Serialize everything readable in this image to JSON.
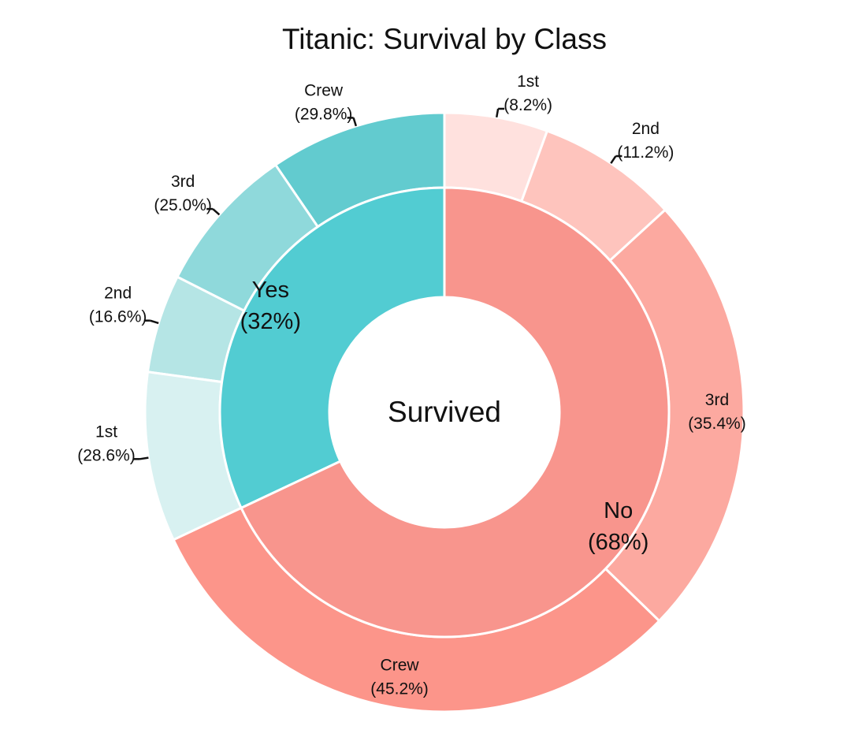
{
  "chart_data": {
    "type": "pie",
    "subtype": "nested-donut",
    "title": "Titanic: Survival by Class",
    "center_label": "Survived",
    "inner": [
      {
        "name": "Yes",
        "pct_label": "(32%)",
        "value": 32,
        "color": "#52CCD2"
      },
      {
        "name": "No",
        "pct_label": "(68%)",
        "value": 68,
        "color": "#F8958D"
      }
    ],
    "outer": [
      {
        "group": "Yes",
        "name": "Crew",
        "pct_label": "(29.8%)",
        "value": 29.8,
        "color": "#62CBCF"
      },
      {
        "group": "Yes",
        "name": "3rd",
        "pct_label": "(25.0%)",
        "value": 25.0,
        "color": "#8FD9DB"
      },
      {
        "group": "Yes",
        "name": "2nd",
        "pct_label": "(16.6%)",
        "value": 16.6,
        "color": "#B5E5E5"
      },
      {
        "group": "Yes",
        "name": "1st",
        "pct_label": "(28.6%)",
        "value": 28.6,
        "color": "#D8F1F1"
      },
      {
        "group": "No",
        "name": "1st",
        "pct_label": "(8.2%)",
        "value": 8.2,
        "color": "#FFE1DE"
      },
      {
        "group": "No",
        "name": "2nd",
        "pct_label": "(11.2%)",
        "value": 11.2,
        "color": "#FEC4BD"
      },
      {
        "group": "No",
        "name": "3rd",
        "pct_label": "(35.4%)",
        "value": 35.4,
        "color": "#FCA9A0"
      },
      {
        "group": "No",
        "name": "Crew",
        "pct_label": "(45.2%)",
        "value": 45.2,
        "color": "#FC958A"
      }
    ]
  }
}
